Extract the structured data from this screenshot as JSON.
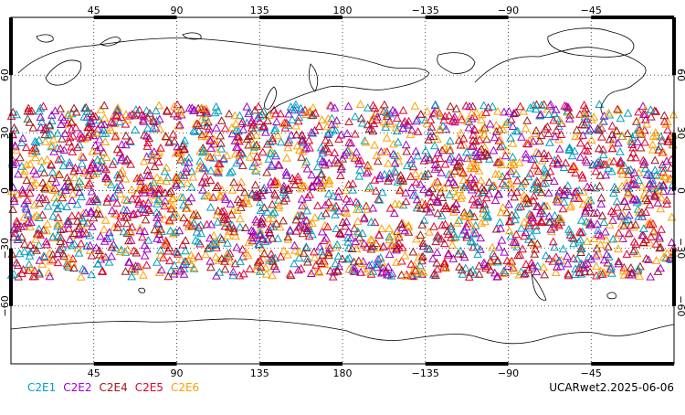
{
  "map": {
    "top_lon_labels": [
      "45",
      "90",
      "135",
      "180",
      "−135",
      "−90",
      "−45"
    ],
    "bottom_lon_labels": [
      "45",
      "90",
      "135",
      "180",
      "−135",
      "−90",
      "−45"
    ],
    "lat_labels": [
      "60",
      "30",
      "0",
      "−30",
      "−60"
    ],
    "lon_values": [
      45,
      90,
      135,
      180,
      225,
      270,
      315
    ],
    "lat_values": [
      60,
      30,
      0,
      -30,
      -60
    ],
    "lon_range": [
      0,
      360
    ],
    "lat_range": [
      -90,
      90
    ],
    "grid": "dotted",
    "marker_shape": "triangle-outline",
    "occultation_lat_band": [
      -45,
      45
    ]
  },
  "legend": {
    "items": [
      {
        "label": "C2E1",
        "color": "#00a0c0"
      },
      {
        "label": "C2E2",
        "color": "#a000c8"
      },
      {
        "label": "C2E4",
        "color": "#a01818"
      },
      {
        "label": "C2E5",
        "color": "#e00030"
      },
      {
        "label": "C2E6",
        "color": "#ffa000"
      }
    ]
  },
  "footer": {
    "stamp": "UCARwet2.2025-06-06"
  }
}
